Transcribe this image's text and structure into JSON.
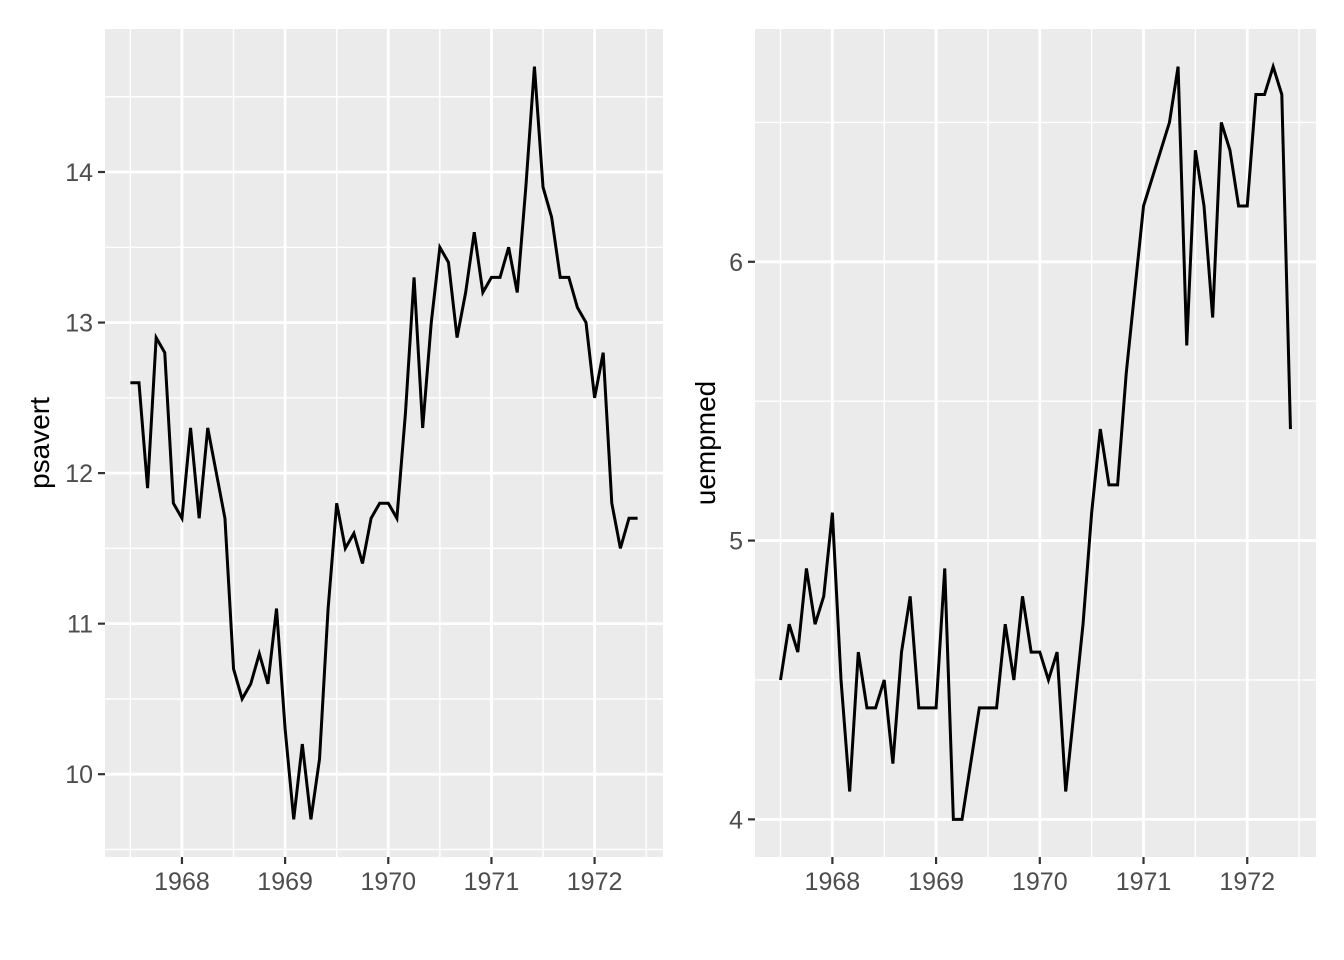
{
  "style": {
    "page_background": "#FFFFFF",
    "panel_background": "#EBEBEB",
    "grid_color": "#FFFFFF",
    "line_color": "#000000",
    "tick_label_color": "#4D4D4D",
    "tick_mark_color": "#333333",
    "axis_title_color": "#000000"
  },
  "chart_data": [
    {
      "type": "line",
      "title": "",
      "xlabel": "",
      "ylabel": "psavert",
      "legend": "none",
      "grid": true,
      "x_start": 1967.5,
      "x_step": 0.0833333,
      "values": [
        12.6,
        12.6,
        11.9,
        12.9,
        12.8,
        11.8,
        11.7,
        12.3,
        11.7,
        12.3,
        12.0,
        11.7,
        10.7,
        10.5,
        10.6,
        10.8,
        10.6,
        11.1,
        10.3,
        9.7,
        10.2,
        9.7,
        10.1,
        11.1,
        11.8,
        11.5,
        11.6,
        11.4,
        11.7,
        11.8,
        11.8,
        11.7,
        12.4,
        13.3,
        12.3,
        13.0,
        13.5,
        13.4,
        12.9,
        13.2,
        13.6,
        13.2,
        13.3,
        13.3,
        13.5,
        13.2,
        13.9,
        14.7,
        13.9,
        13.7,
        13.3,
        13.3,
        13.1,
        13.0,
        12.5,
        12.8,
        11.8,
        11.5,
        11.7,
        11.7
      ],
      "xlim": [
        1967.254,
        1972.663
      ],
      "ylim": [
        9.45,
        14.95
      ],
      "x_ticks": [
        1968,
        1969,
        1970,
        1971,
        1972
      ],
      "x_tick_labels": [
        "1968",
        "1969",
        "1970",
        "1971",
        "1972"
      ],
      "y_ticks": [
        10,
        11,
        12,
        13,
        14
      ],
      "y_tick_labels": [
        "10",
        "11",
        "12",
        "13",
        "14"
      ],
      "x_minor": [
        1967.5,
        1968.5,
        1969.5,
        1970.5,
        1971.5,
        1972.5
      ],
      "y_minor": [
        9.5,
        10.5,
        11.5,
        12.5,
        13.5,
        14.5
      ]
    },
    {
      "type": "line",
      "title": "",
      "xlabel": "",
      "ylabel": "uempmed",
      "legend": "none",
      "grid": true,
      "x_start": 1967.5,
      "x_step": 0.0833333,
      "values": [
        4.5,
        4.7,
        4.6,
        4.9,
        4.7,
        4.8,
        5.1,
        4.5,
        4.1,
        4.6,
        4.4,
        4.4,
        4.5,
        4.2,
        4.6,
        4.8,
        4.4,
        4.4,
        4.4,
        4.9,
        4.0,
        4.0,
        4.2,
        4.4,
        4.4,
        4.4,
        4.7,
        4.5,
        4.8,
        4.6,
        4.6,
        4.5,
        4.6,
        4.1,
        4.4,
        4.7,
        5.1,
        5.4,
        5.2,
        5.2,
        5.6,
        5.9,
        6.2,
        6.3,
        6.4,
        6.5,
        6.7,
        5.7,
        6.4,
        6.2,
        5.8,
        6.5,
        6.4,
        6.2,
        6.2,
        6.6,
        6.6,
        6.7,
        6.6,
        5.4
      ],
      "xlim": [
        1967.254,
        1972.663
      ],
      "ylim": [
        3.865,
        6.835
      ],
      "x_ticks": [
        1968,
        1969,
        1970,
        1971,
        1972
      ],
      "x_tick_labels": [
        "1968",
        "1969",
        "1970",
        "1971",
        "1972"
      ],
      "y_ticks": [
        4,
        5,
        6
      ],
      "y_tick_labels": [
        "4",
        "5",
        "6"
      ],
      "x_minor": [
        1967.5,
        1968.5,
        1969.5,
        1970.5,
        1971.5,
        1972.5
      ],
      "y_minor": [
        4.5,
        5.5,
        6.5
      ]
    }
  ]
}
